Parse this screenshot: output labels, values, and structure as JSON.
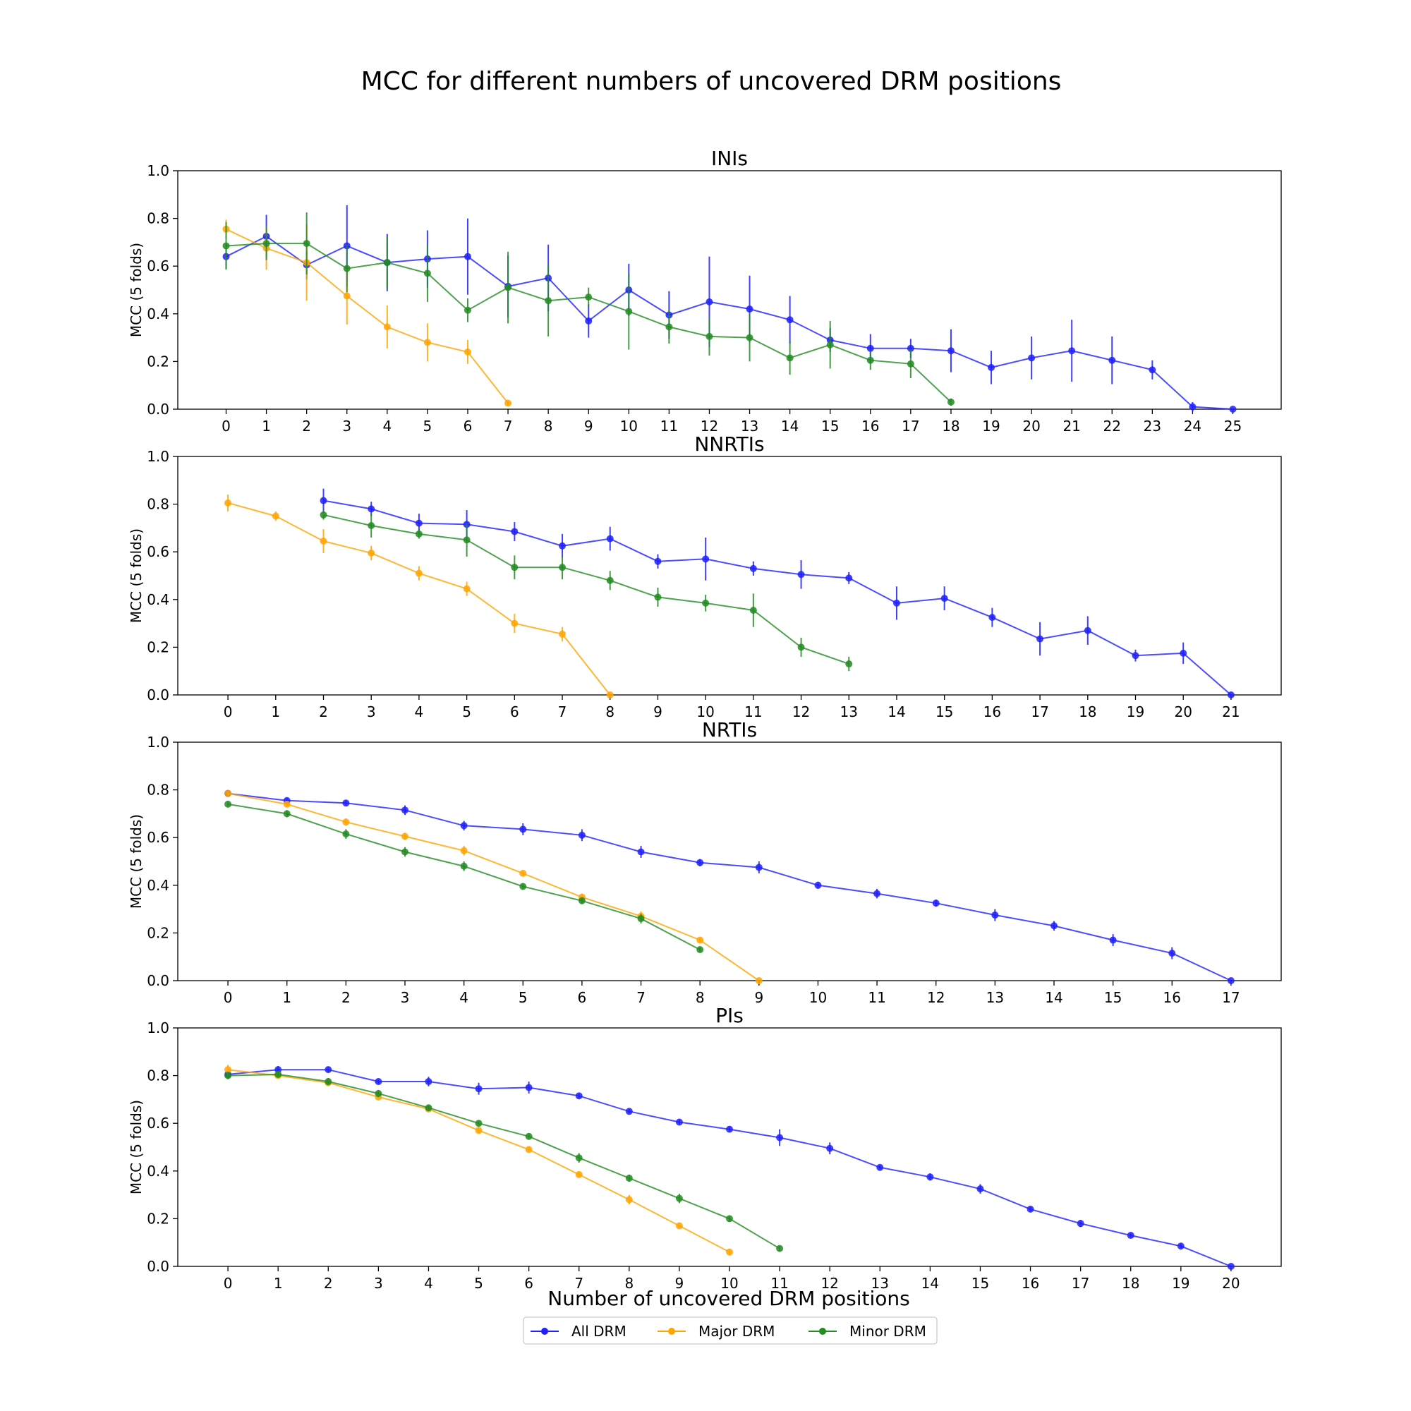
{
  "figure": {
    "title": "MCC for different numbers of uncovered DRM positions",
    "xlabel": "Number of uncovered DRM positions",
    "legend_placement": "bottom-center",
    "legend": [
      {
        "key": "all",
        "label": "All DRM",
        "color": "#1f1fff"
      },
      {
        "key": "major",
        "label": "Major DRM",
        "color": "#ffa500"
      },
      {
        "key": "minor",
        "label": "Minor DRM",
        "color": "#228b22"
      }
    ]
  },
  "chart_data": [
    {
      "type": "line",
      "title": "INIs",
      "ylabel": "MCC (5 folds)",
      "xlim": [
        -1.2,
        26.2
      ],
      "ylim": [
        0,
        1
      ],
      "xticks": [
        0,
        1,
        2,
        3,
        4,
        5,
        6,
        7,
        8,
        9,
        10,
        11,
        12,
        13,
        14,
        15,
        16,
        17,
        18,
        19,
        20,
        21,
        22,
        23,
        24,
        25
      ],
      "yticks": [
        0.0,
        0.2,
        0.4,
        0.6,
        0.8,
        1.0
      ],
      "series": [
        {
          "name": "All DRM",
          "key": "all",
          "x": [
            0,
            1,
            2,
            3,
            4,
            5,
            6,
            7,
            8,
            9,
            10,
            11,
            12,
            13,
            14,
            15,
            16,
            17,
            18,
            19,
            20,
            21,
            22,
            23,
            24,
            25
          ],
          "y": [
            0.64,
            0.725,
            0.605,
            0.685,
            0.615,
            0.63,
            0.64,
            0.515,
            0.55,
            0.37,
            0.5,
            0.395,
            0.45,
            0.42,
            0.375,
            0.29,
            0.255,
            0.255,
            0.245,
            0.175,
            0.215,
            0.245,
            0.205,
            0.165,
            0.01,
            0.0
          ],
          "err": [
            0.05,
            0.09,
            0.06,
            0.17,
            0.12,
            0.12,
            0.16,
            0.13,
            0.14,
            0.07,
            0.11,
            0.1,
            0.19,
            0.14,
            0.1,
            0.05,
            0.06,
            0.04,
            0.09,
            0.07,
            0.09,
            0.13,
            0.1,
            0.04,
            0.02,
            0.0
          ]
        },
        {
          "name": "Major DRM",
          "key": "major",
          "x": [
            0,
            1,
            2,
            3,
            4,
            5,
            6,
            7
          ],
          "y": [
            0.755,
            0.675,
            0.615,
            0.475,
            0.345,
            0.28,
            0.24,
            0.025
          ],
          "err": [
            0.04,
            0.09,
            0.16,
            0.12,
            0.09,
            0.08,
            0.05,
            0.01
          ]
        },
        {
          "name": "Minor DRM",
          "key": "minor",
          "x": [
            0,
            1,
            2,
            3,
            4,
            5,
            6,
            7,
            8,
            9,
            10,
            11,
            12,
            13,
            14,
            15,
            16,
            17,
            18
          ],
          "y": [
            0.685,
            0.695,
            0.695,
            0.59,
            0.615,
            0.57,
            0.415,
            0.51,
            0.455,
            0.47,
            0.41,
            0.345,
            0.305,
            0.3,
            0.215,
            0.27,
            0.205,
            0.19,
            0.03
          ],
          "err": [
            0.1,
            0.07,
            0.13,
            0.1,
            0.11,
            0.12,
            0.05,
            0.15,
            0.15,
            0.04,
            0.16,
            0.07,
            0.08,
            0.1,
            0.07,
            0.1,
            0.04,
            0.06,
            0.015
          ]
        }
      ]
    },
    {
      "type": "line",
      "title": "NNRTIs",
      "ylabel": "MCC (5 folds)",
      "xlim": [
        -1.05,
        22.05
      ],
      "ylim": [
        0,
        1
      ],
      "xticks": [
        0,
        1,
        2,
        3,
        4,
        5,
        6,
        7,
        8,
        9,
        10,
        11,
        12,
        13,
        14,
        15,
        16,
        17,
        18,
        19,
        20,
        21
      ],
      "yticks": [
        0.0,
        0.2,
        0.4,
        0.6,
        0.8,
        1.0
      ],
      "series": [
        {
          "name": "All DRM",
          "key": "all",
          "x": [
            2,
            3,
            4,
            5,
            6,
            7,
            8,
            9,
            10,
            11,
            12,
            13,
            14,
            15,
            16,
            17,
            18,
            19,
            20,
            21
          ],
          "y": [
            0.815,
            0.78,
            0.72,
            0.715,
            0.685,
            0.625,
            0.655,
            0.56,
            0.57,
            0.53,
            0.505,
            0.49,
            0.385,
            0.405,
            0.325,
            0.235,
            0.27,
            0.165,
            0.175,
            0.0
          ],
          "err": [
            0.05,
            0.03,
            0.04,
            0.06,
            0.04,
            0.05,
            0.05,
            0.03,
            0.09,
            0.03,
            0.06,
            0.025,
            0.07,
            0.05,
            0.04,
            0.07,
            0.06,
            0.025,
            0.045,
            0.0
          ]
        },
        {
          "name": "Major DRM",
          "key": "major",
          "x": [
            0,
            1,
            2,
            3,
            4,
            5,
            6,
            7,
            8
          ],
          "y": [
            0.805,
            0.75,
            0.645,
            0.595,
            0.51,
            0.445,
            0.3,
            0.255,
            0.0
          ],
          "err": [
            0.035,
            0.02,
            0.05,
            0.03,
            0.03,
            0.03,
            0.04,
            0.03,
            0.0
          ]
        },
        {
          "name": "Minor DRM",
          "key": "minor",
          "x": [
            2,
            3,
            4,
            5,
            6,
            7,
            8,
            9,
            10,
            11,
            12,
            13
          ],
          "y": [
            0.755,
            0.71,
            0.675,
            0.65,
            0.535,
            0.535,
            0.48,
            0.41,
            0.385,
            0.355,
            0.2,
            0.13
          ],
          "err": [
            0.02,
            0.05,
            0.02,
            0.07,
            0.05,
            0.05,
            0.04,
            0.04,
            0.035,
            0.07,
            0.04,
            0.03
          ]
        }
      ]
    },
    {
      "type": "line",
      "title": "NRTIs",
      "ylabel": "MCC (5 folds)",
      "xlim": [
        -0.85,
        17.85
      ],
      "ylim": [
        0,
        1
      ],
      "xticks": [
        0,
        1,
        2,
        3,
        4,
        5,
        6,
        7,
        8,
        9,
        10,
        11,
        12,
        13,
        14,
        15,
        16,
        17
      ],
      "yticks": [
        0.0,
        0.2,
        0.4,
        0.6,
        0.8,
        1.0
      ],
      "series": [
        {
          "name": "All DRM",
          "key": "all",
          "x": [
            0,
            1,
            2,
            3,
            4,
            5,
            6,
            7,
            8,
            9,
            10,
            11,
            12,
            13,
            14,
            15,
            16,
            17
          ],
          "y": [
            0.785,
            0.755,
            0.745,
            0.715,
            0.65,
            0.635,
            0.61,
            0.54,
            0.495,
            0.475,
            0.4,
            0.365,
            0.325,
            0.275,
            0.23,
            0.17,
            0.115,
            0.0
          ],
          "err": [
            0.01,
            0.01,
            0.01,
            0.02,
            0.02,
            0.025,
            0.025,
            0.025,
            0.015,
            0.025,
            0.015,
            0.02,
            0.015,
            0.025,
            0.02,
            0.025,
            0.025,
            0.0
          ]
        },
        {
          "name": "Major DRM",
          "key": "major",
          "x": [
            0,
            1,
            2,
            3,
            4,
            5,
            6,
            7,
            8,
            9
          ],
          "y": [
            0.785,
            0.74,
            0.665,
            0.605,
            0.545,
            0.45,
            0.35,
            0.27,
            0.17,
            0.0
          ],
          "err": [
            0.01,
            0.01,
            0.015,
            0.015,
            0.02,
            0.01,
            0.015,
            0.02,
            0.01,
            0.0
          ]
        },
        {
          "name": "Minor DRM",
          "key": "minor",
          "x": [
            0,
            1,
            2,
            3,
            4,
            5,
            6,
            7,
            8
          ],
          "y": [
            0.74,
            0.7,
            0.615,
            0.54,
            0.48,
            0.395,
            0.335,
            0.26,
            0.13
          ],
          "err": [
            0.01,
            0.015,
            0.02,
            0.02,
            0.02,
            0.01,
            0.01,
            0.02,
            0.01
          ]
        }
      ]
    },
    {
      "type": "line",
      "title": "PIs",
      "ylabel": "MCC (5 folds)",
      "xlim": [
        -1.0,
        21.0
      ],
      "ylim": [
        0,
        1
      ],
      "xticks": [
        0,
        1,
        2,
        3,
        4,
        5,
        6,
        7,
        8,
        9,
        10,
        11,
        12,
        13,
        14,
        15,
        16,
        17,
        18,
        19,
        20
      ],
      "yticks": [
        0.0,
        0.2,
        0.4,
        0.6,
        0.8,
        1.0
      ],
      "series": [
        {
          "name": "All DRM",
          "key": "all",
          "x": [
            0,
            1,
            2,
            3,
            4,
            5,
            6,
            7,
            8,
            9,
            10,
            11,
            12,
            13,
            14,
            15,
            16,
            17,
            18,
            19,
            20
          ],
          "y": [
            0.805,
            0.825,
            0.825,
            0.775,
            0.775,
            0.745,
            0.75,
            0.715,
            0.65,
            0.605,
            0.575,
            0.54,
            0.495,
            0.415,
            0.375,
            0.325,
            0.24,
            0.18,
            0.13,
            0.085,
            0.0
          ],
          "err": [
            0.01,
            0.015,
            0.01,
            0.01,
            0.02,
            0.025,
            0.025,
            0.01,
            0.01,
            0.01,
            0.01,
            0.035,
            0.025,
            0.01,
            0.015,
            0.02,
            0.01,
            0.015,
            0.01,
            0.01,
            0.0
          ]
        },
        {
          "name": "Major DRM",
          "key": "major",
          "x": [
            0,
            1,
            2,
            3,
            4,
            5,
            6,
            7,
            8,
            9,
            10
          ],
          "y": [
            0.825,
            0.8,
            0.77,
            0.71,
            0.66,
            0.57,
            0.49,
            0.385,
            0.28,
            0.17,
            0.06
          ],
          "err": [
            0.02,
            0.01,
            0.01,
            0.01,
            0.01,
            0.01,
            0.01,
            0.01,
            0.02,
            0.01,
            0.01
          ]
        },
        {
          "name": "Minor DRM",
          "key": "minor",
          "x": [
            0,
            1,
            2,
            3,
            4,
            5,
            6,
            7,
            8,
            9,
            10,
            11
          ],
          "y": [
            0.8,
            0.805,
            0.775,
            0.725,
            0.665,
            0.6,
            0.545,
            0.455,
            0.37,
            0.285,
            0.2,
            0.075
          ],
          "err": [
            0.015,
            0.01,
            0.015,
            0.015,
            0.01,
            0.01,
            0.01,
            0.02,
            0.015,
            0.02,
            0.01,
            0.01
          ]
        }
      ]
    }
  ]
}
